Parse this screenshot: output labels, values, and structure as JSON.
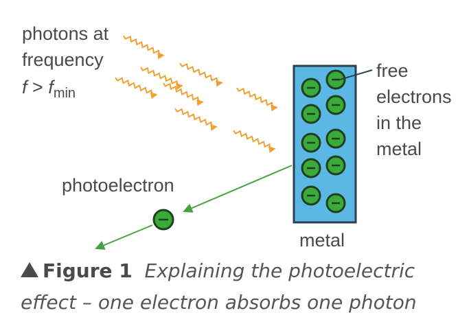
{
  "labels": {
    "photons_line1": "photons at",
    "photons_line2": "frequency",
    "inequality_f": "f",
    "inequality_op": " > ",
    "inequality_f2": "f",
    "inequality_sub": "min",
    "photoelectron": "photoelectron",
    "free_line1": "free",
    "free_line2": "electrons",
    "free_line3": "in the",
    "free_line4": "metal",
    "metal": "metal",
    "electron_sign": "–"
  },
  "caption": {
    "figure_label": "Figure 1",
    "text_line1": "Explaining the photoelectric",
    "text_line2": "effect – one electron absorbs one photon"
  },
  "colors": {
    "photon": "#f0a030",
    "metal_fill": "#5bb8e4",
    "metal_border": "#2a3f4f",
    "electron_fill": "#3aaa3a",
    "electron_border": "#1f3f1f",
    "photoelectron_path": "#4aa040",
    "text": "#4a4a4a"
  }
}
